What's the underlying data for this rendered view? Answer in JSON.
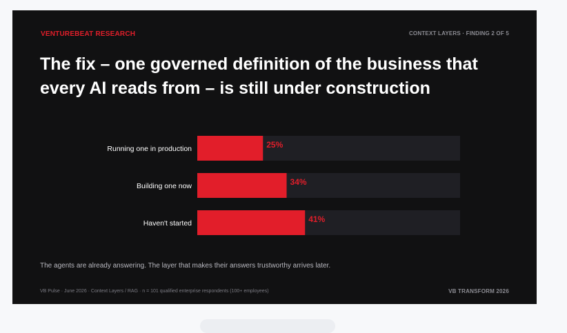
{
  "header": {
    "brand": "VENTUREBEAT RESEARCH",
    "finding": "CONTEXT LAYERS · FINDING 2 OF 5"
  },
  "title": "The fix – one governed definition of the business that every AI reads from – is still under construction",
  "subtitle": "The agents are already answering. The layer that makes their answers trustworthy arrives later.",
  "footer": {
    "source": "VB Pulse · June 2026 · Context Layers / RAG · n = 101 qualified enterprise respondents (100+ employees)",
    "event": "VB TRANSFORM 2026"
  },
  "colors": {
    "bar": "#e21e2a",
    "track": "#1f1f24",
    "value_label": "#e21e2a",
    "background": "#111112"
  },
  "chart_data": {
    "type": "bar",
    "orientation": "horizontal",
    "categories": [
      "Running one in production",
      "Building one now",
      "Haven't started"
    ],
    "values": [
      25,
      34,
      41
    ],
    "value_labels": [
      "25%",
      "34%",
      "41%"
    ],
    "xlim": [
      0,
      100
    ],
    "grid": false,
    "legend": "none"
  }
}
